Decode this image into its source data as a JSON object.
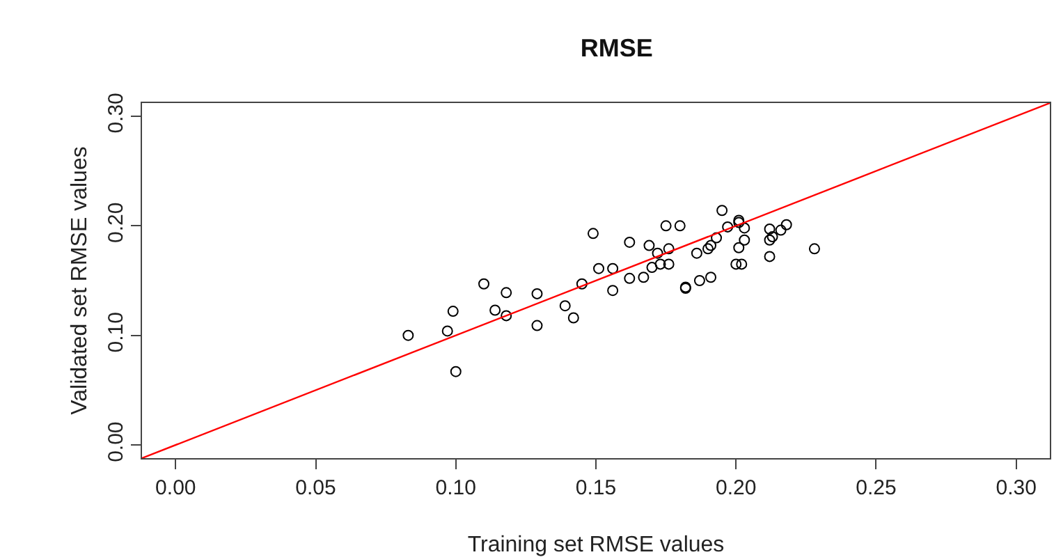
{
  "chart_data": {
    "type": "scatter",
    "title": "RMSE",
    "xlabel": "Training set RMSE values",
    "ylabel": "Validated set RMSE values",
    "xlim": [
      -0.012,
      0.312
    ],
    "ylim": [
      -0.012,
      0.312
    ],
    "xticks": [
      {
        "value": 0,
        "label": "0.00"
      },
      0.05,
      {
        "value": 0.1,
        "label": "0.10"
      },
      0.15,
      {
        "value": 0.2,
        "label": "0.20"
      },
      0.25,
      {
        "value": 0.3,
        "label": "0.30"
      }
    ],
    "yticks": [
      {
        "value": 0,
        "label": "0.00"
      },
      {
        "value": 0.1,
        "label": "0.10"
      },
      {
        "value": 0.2,
        "label": "0.20"
      },
      {
        "value": 0.3,
        "label": "0.30"
      }
    ],
    "marker": "circle",
    "series": [
      {
        "color": "#000000",
        "x": [
          0.083,
          0.1,
          0.097,
          0.099,
          0.11,
          0.114,
          0.118,
          0.118,
          0.129,
          0.129,
          0.139,
          0.142,
          0.145,
          0.149,
          0.151,
          0.156,
          0.156,
          0.162,
          0.162,
          0.167,
          0.169,
          0.17,
          0.172,
          0.173,
          0.175,
          0.176,
          0.176,
          0.18,
          0.182,
          0.182,
          0.186,
          0.187,
          0.19,
          0.191,
          0.191,
          0.193,
          0.195,
          0.197,
          0.2,
          0.201,
          0.201,
          0.201,
          0.202,
          0.203,
          0.203,
          0.212,
          0.212,
          0.212,
          0.213,
          0.216,
          0.218,
          0.228
        ],
        "values": [
          0.1,
          0.067,
          0.104,
          0.122,
          0.147,
          0.123,
          0.139,
          0.118,
          0.138,
          0.109,
          0.127,
          0.116,
          0.147,
          0.193,
          0.161,
          0.161,
          0.141,
          0.185,
          0.152,
          0.153,
          0.182,
          0.162,
          0.175,
          0.165,
          0.2,
          0.179,
          0.165,
          0.2,
          0.144,
          0.143,
          0.175,
          0.15,
          0.179,
          0.182,
          0.153,
          0.189,
          0.214,
          0.199,
          0.165,
          0.205,
          0.203,
          0.18,
          0.165,
          0.187,
          0.198,
          0.197,
          0.187,
          0.172,
          0.19,
          0.196,
          0.201,
          0.179
        ]
      },
      {
        "type": "line",
        "marker": "none",
        "color": "#ff0000",
        "x": [
          -0.012,
          0.312
        ],
        "values": [
          -0.012,
          0.312
        ]
      }
    ]
  }
}
